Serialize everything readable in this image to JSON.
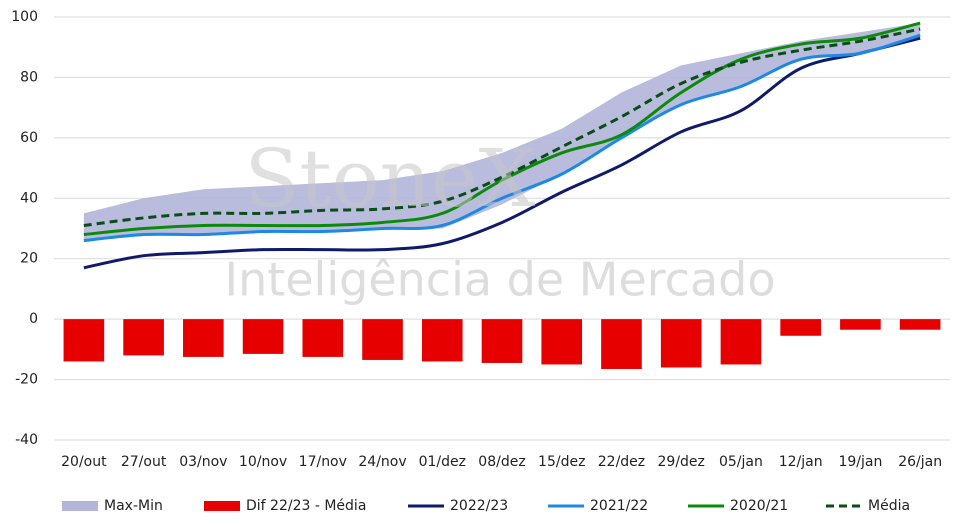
{
  "chart_data": {
    "type": "line",
    "watermark": [
      "StoneX",
      "Inteligência de Mercado"
    ],
    "categories": [
      "20/out",
      "27/out",
      "03/nov",
      "10/nov",
      "17/nov",
      "24/nov",
      "01/dez",
      "08/dez",
      "15/dez",
      "22/dez",
      "29/dez",
      "05/jan",
      "12/jan",
      "19/jan",
      "26/jan"
    ],
    "ylim": [
      -40,
      100
    ],
    "yticks": [
      -40,
      -20,
      0,
      20,
      40,
      60,
      80,
      100
    ],
    "grid": true,
    "series": [
      {
        "name": "Max-Min",
        "type": "range",
        "color": "#b3b5d9",
        "max": [
          35,
          40,
          43,
          44,
          45,
          46,
          49,
          55,
          63,
          75,
          84,
          88,
          92,
          95,
          98
        ],
        "min": [
          26,
          27.5,
          28,
          29,
          29,
          29.5,
          30,
          38,
          48,
          60,
          71,
          77,
          86,
          88,
          93
        ]
      },
      {
        "name": "Dif 22/23 - Média",
        "type": "bar",
        "color": "#e60000",
        "values": [
          -14,
          -12,
          -12.5,
          -11.5,
          -12.5,
          -13.5,
          -14,
          -14.5,
          -15,
          -16.5,
          -16,
          -15,
          -5.5,
          -3.5,
          -3.5
        ]
      },
      {
        "name": "2022/23",
        "type": "line",
        "color": "#0f1a6b",
        "dash": false,
        "values": [
          17,
          21,
          22,
          23,
          23,
          23,
          25,
          32,
          42,
          51,
          62,
          69,
          83,
          88,
          93
        ]
      },
      {
        "name": "2021/22",
        "type": "line",
        "color": "#1e88e5",
        "dash": false,
        "values": [
          26,
          28,
          28,
          29,
          29,
          30,
          31,
          40,
          48,
          60,
          71,
          77,
          86,
          88,
          94
        ]
      },
      {
        "name": "2020/21",
        "type": "line",
        "color": "#0b8a0b",
        "dash": false,
        "values": [
          28,
          30,
          31,
          31,
          31,
          32,
          35,
          46,
          55,
          61,
          75,
          86,
          91,
          93,
          98
        ]
      },
      {
        "name": "Média",
        "type": "line",
        "color": "#0a4d16",
        "dash": true,
        "values": [
          31,
          33.5,
          35,
          35,
          36,
          36.5,
          39,
          47,
          57,
          67,
          78,
          85,
          89,
          92,
          96
        ]
      }
    ]
  }
}
